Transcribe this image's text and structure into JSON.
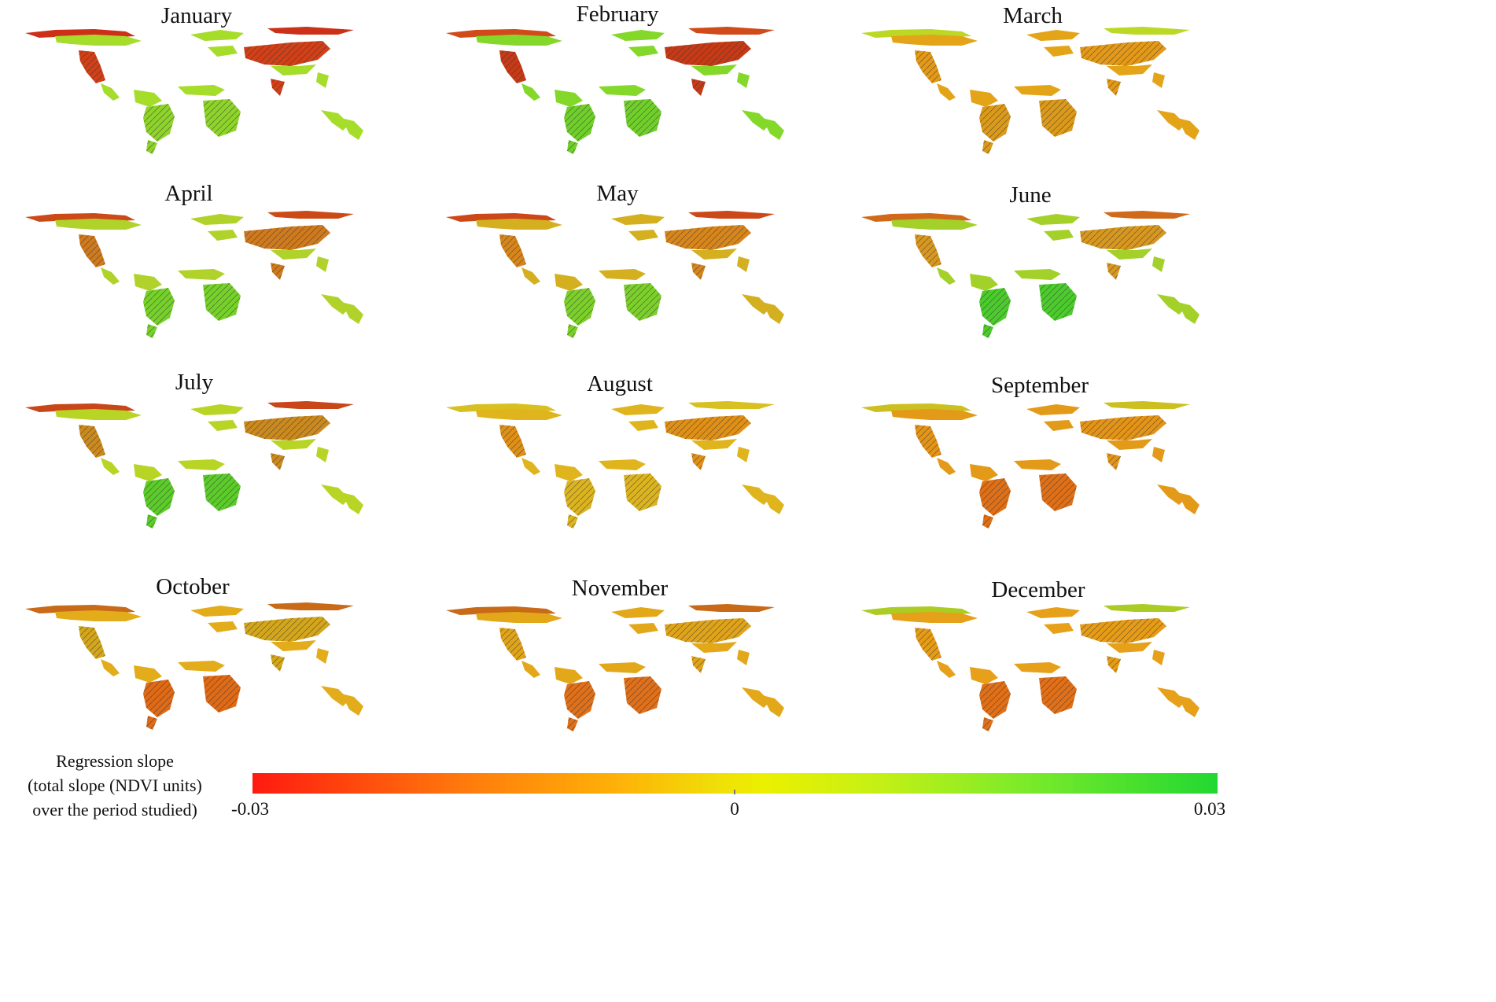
{
  "panels": [
    {
      "month": "January",
      "tone": {
        "north": "#a6dc2a",
        "south": "#8ed42a",
        "high": "#d24018",
        "arctic": "#cc3018"
      }
    },
    {
      "month": "February",
      "tone": {
        "north": "#84d82a",
        "south": "#70d02a",
        "high": "#c83a16",
        "arctic": "#d04a1a"
      }
    },
    {
      "month": "March",
      "tone": {
        "north": "#e4a418",
        "south": "#dc9a1a",
        "high": "#e49a18",
        "arctic": "#bcd824"
      }
    },
    {
      "month": "April",
      "tone": {
        "north": "#b0d22a",
        "south": "#76d22a",
        "high": "#d07a1e",
        "arctic": "#cc4a18"
      }
    },
    {
      "month": "May",
      "tone": {
        "north": "#d4b020",
        "south": "#7cd02a",
        "high": "#d8861c",
        "arctic": "#cc4818"
      }
    },
    {
      "month": "June",
      "tone": {
        "north": "#a4d02a",
        "south": "#4ccc2c",
        "high": "#d89820",
        "arctic": "#d06a1a"
      }
    },
    {
      "month": "July",
      "tone": {
        "north": "#b8d424",
        "south": "#5ccc2a",
        "high": "#cc8a1e",
        "arctic": "#c84618"
      }
    },
    {
      "month": "August",
      "tone": {
        "north": "#e0b41c",
        "south": "#dcb420",
        "high": "#e09016",
        "arctic": "#d8c020"
      }
    },
    {
      "month": "September",
      "tone": {
        "north": "#e29a18",
        "south": "#e07018",
        "high": "#e49416",
        "arctic": "#ccc020"
      }
    },
    {
      "month": "October",
      "tone": {
        "north": "#e2ac1a",
        "south": "#e06a16",
        "high": "#d4a61c",
        "arctic": "#c86a18"
      }
    },
    {
      "month": "November",
      "tone": {
        "north": "#e2a81a",
        "south": "#e0701a",
        "high": "#e0a41a",
        "arctic": "#c86a18"
      }
    },
    {
      "month": "December",
      "tone": {
        "north": "#e6a01a",
        "south": "#e27018",
        "high": "#e69c16",
        "arctic": "#aacc24"
      }
    }
  ],
  "legend": {
    "title_lines": [
      "Regression slope",
      "(total slope (NDVI units)",
      "over the period studied)"
    ],
    "min_label": "-0.03",
    "mid_label": "0",
    "max_label": "0.03",
    "colors": {
      "min": "#ff1a10",
      "mid": "#ecf000",
      "max": "#22d832"
    }
  }
}
